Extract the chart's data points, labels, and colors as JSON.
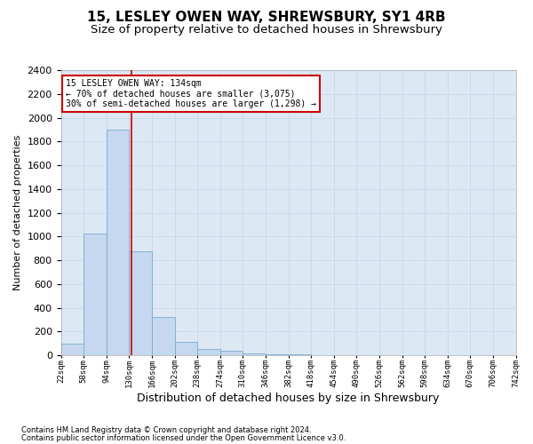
{
  "title": "15, LESLEY OWEN WAY, SHREWSBURY, SY1 4RB",
  "subtitle": "Size of property relative to detached houses in Shrewsbury",
  "xlabel": "Distribution of detached houses by size in Shrewsbury",
  "ylabel": "Number of detached properties",
  "footnote1": "Contains HM Land Registry data © Crown copyright and database right 2024.",
  "footnote2": "Contains public sector information licensed under the Open Government Licence v3.0.",
  "bar_starts": [
    22,
    58,
    94,
    130,
    166,
    202,
    238,
    274,
    310,
    346,
    382,
    418,
    454,
    490,
    526,
    562,
    598,
    634,
    670,
    706
  ],
  "bar_labels": [
    "22sqm",
    "58sqm",
    "94sqm",
    "130sqm",
    "166sqm",
    "202sqm",
    "238sqm",
    "274sqm",
    "310sqm",
    "346sqm",
    "382sqm",
    "418sqm",
    "454sqm",
    "490sqm",
    "526sqm",
    "562sqm",
    "598sqm",
    "634sqm",
    "670sqm",
    "706sqm",
    "742sqm"
  ],
  "bar_heights": [
    100,
    1025,
    1900,
    875,
    325,
    115,
    55,
    35,
    15,
    10,
    5,
    2,
    1,
    1,
    1,
    0,
    0,
    0,
    0,
    0
  ],
  "bar_color": "#c5d8f0",
  "bar_edge_color": "#7aaad0",
  "property_line_x": 134,
  "property_line_color": "#cc0000",
  "annotation_text": "15 LESLEY OWEN WAY: 134sqm\n← 70% of detached houses are smaller (3,075)\n30% of semi-detached houses are larger (1,298) →",
  "annotation_box_color": "#ffffff",
  "annotation_box_edge": "#cc0000",
  "ylim": [
    0,
    2400
  ],
  "yticks": [
    0,
    200,
    400,
    600,
    800,
    1000,
    1200,
    1400,
    1600,
    1800,
    2000,
    2200,
    2400
  ],
  "grid_color": "#c8d8e8",
  "bg_color": "#dce8f4",
  "title_fontsize": 11,
  "subtitle_fontsize": 9.5,
  "ylabel_fontsize": 8,
  "xlabel_fontsize": 9,
  "ytick_fontsize": 8,
  "xtick_fontsize": 6.5,
  "annot_fontsize": 7,
  "footnote_fontsize": 6
}
